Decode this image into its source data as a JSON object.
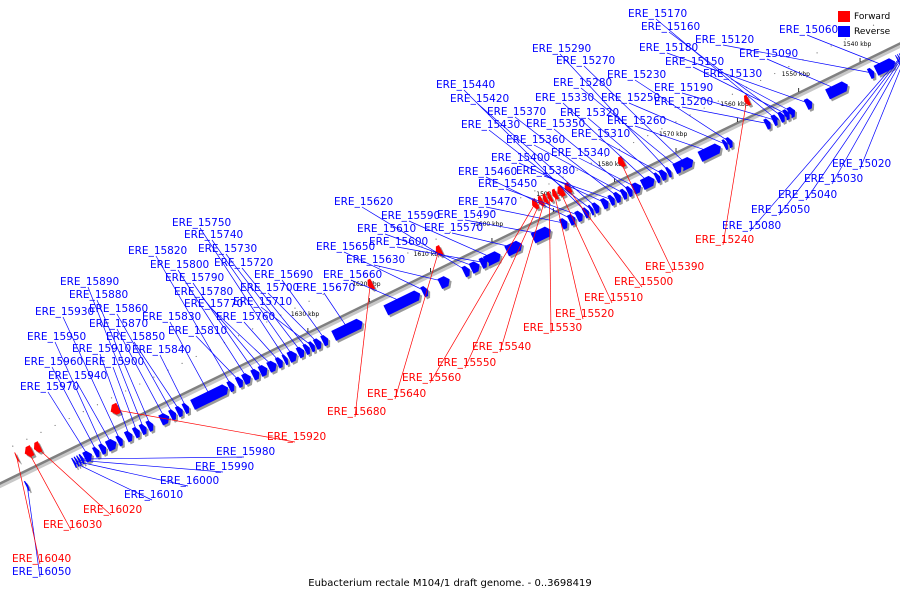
{
  "caption": "Eubacterium rectale M104/1 draft genome. - 0..3698419",
  "legend": {
    "items": [
      {
        "label": "Forward",
        "color": "#ff0000"
      },
      {
        "label": "Reverse",
        "color": "#0000ff"
      }
    ]
  },
  "colors": {
    "forward": "#ff0000",
    "reverse": "#0000ff",
    "axis": "#808080",
    "tick": "#000000"
  },
  "scale_labels": [
    {
      "text": "1540 kbp",
      "pos": 1540
    },
    {
      "text": "1550 kbp",
      "pos": 1550
    },
    {
      "text": "1560 kbp",
      "pos": 1560
    },
    {
      "text": "1570 kbp",
      "pos": 1570
    },
    {
      "text": "1580 kbp",
      "pos": 1580
    },
    {
      "text": "1590 kbp",
      "pos": 1590
    },
    {
      "text": "1600 kbp",
      "pos": 1600
    },
    {
      "text": "1610 kbp",
      "pos": 1610
    },
    {
      "text": "1620 kbp",
      "pos": 1620
    },
    {
      "text": "1630 kbp",
      "pos": 1630
    }
  ],
  "genes": [
    {
      "id": "ERE_15060",
      "strand": "reverse",
      "start": 1535.3,
      "end": 1538.4
    },
    {
      "id": "ERE_15090",
      "strand": "reverse",
      "start": 1543.0,
      "end": 1546.3
    },
    {
      "id": "ERE_15120",
      "strand": "reverse",
      "start": 1538.7,
      "end": 1539.5
    },
    {
      "id": "ERE_15130",
      "strand": "reverse",
      "start": 1551.6,
      "end": 1552.6
    },
    {
      "id": "ERE_15150",
      "strand": "reverse",
      "start": 1552.5,
      "end": 1553.3
    },
    {
      "id": "ERE_15160",
      "strand": "reverse",
      "start": 1553.3,
      "end": 1554.1
    },
    {
      "id": "ERE_15170",
      "strand": "reverse",
      "start": 1554.3,
      "end": 1555.0
    },
    {
      "id": "ERE_15180",
      "strand": "reverse",
      "start": 1548.8,
      "end": 1549.8
    },
    {
      "id": "ERE_15190",
      "strand": "reverse",
      "start": 1554.5,
      "end": 1555.2
    },
    {
      "id": "ERE_15200",
      "strand": "reverse",
      "start": 1555.6,
      "end": 1556.4
    },
    {
      "id": "ERE_15230",
      "strand": "reverse",
      "start": 1561.8,
      "end": 1562.6
    },
    {
      "id": "ERE_15250",
      "strand": "reverse",
      "start": 1562.6,
      "end": 1563.2
    },
    {
      "id": "ERE_15260",
      "strand": "reverse",
      "start": 1563.7,
      "end": 1567.1
    },
    {
      "id": "ERE_15270",
      "strand": "reverse",
      "start": 1568.2,
      "end": 1570.6
    },
    {
      "id": "ERE_15280",
      "strand": "reverse",
      "start": 1570.1,
      "end": 1571.2
    },
    {
      "id": "ERE_15290",
      "strand": "reverse",
      "start": 1571.8,
      "end": 1572.4
    },
    {
      "id": "ERE_15310",
      "strand": "reverse",
      "start": 1572.5,
      "end": 1573.5
    },
    {
      "id": "ERE_15320",
      "strand": "reverse",
      "start": 1573.6,
      "end": 1574.3
    },
    {
      "id": "ERE_15330",
      "strand": "reverse",
      "start": 1574.5,
      "end": 1576.5
    },
    {
      "id": "ERE_15340",
      "strand": "reverse",
      "start": 1576.7,
      "end": 1578.0
    },
    {
      "id": "ERE_15350",
      "strand": "reverse",
      "start": 1578.1,
      "end": 1578.9
    },
    {
      "id": "ERE_15360",
      "strand": "reverse",
      "start": 1579.0,
      "end": 1579.8
    },
    {
      "id": "ERE_15370",
      "strand": "reverse",
      "start": 1580.0,
      "end": 1580.9
    },
    {
      "id": "ERE_15380",
      "strand": "reverse",
      "start": 1581.0,
      "end": 1581.8
    },
    {
      "id": "ERE_15400",
      "strand": "reverse",
      "start": 1582.0,
      "end": 1583.0
    },
    {
      "id": "ERE_15420",
      "strand": "reverse",
      "start": 1583.5,
      "end": 1584.4
    },
    {
      "id": "ERE_15430",
      "strand": "reverse",
      "start": 1584.5,
      "end": 1585.0
    },
    {
      "id": "ERE_15440",
      "strand": "reverse",
      "start": 1585.2,
      "end": 1586.0
    },
    {
      "id": "ERE_15450",
      "strand": "reverse",
      "start": 1586.2,
      "end": 1587.2
    },
    {
      "id": "ERE_15460",
      "strand": "reverse",
      "start": 1587.4,
      "end": 1588.4
    },
    {
      "id": "ERE_15470",
      "strand": "reverse",
      "start": 1588.7,
      "end": 1589.7
    },
    {
      "id": "ERE_15490",
      "strand": "reverse",
      "start": 1591.4,
      "end": 1594.3
    },
    {
      "id": "ERE_15570",
      "strand": "reverse",
      "start": 1596.1,
      "end": 1598.6
    },
    {
      "id": "ERE_15590",
      "strand": "reverse",
      "start": 1599.6,
      "end": 1602.1
    },
    {
      "id": "ERE_15600",
      "strand": "reverse",
      "start": 1601.8,
      "end": 1602.8
    },
    {
      "id": "ERE_15610",
      "strand": "reverse",
      "start": 1603.0,
      "end": 1604.4
    },
    {
      "id": "ERE_15620",
      "strand": "reverse",
      "start": 1604.6,
      "end": 1605.6
    },
    {
      "id": "ERE_15630",
      "strand": "reverse",
      "start": 1607.9,
      "end": 1609.5
    },
    {
      "id": "ERE_15650",
      "strand": "reverse",
      "start": 1611.4,
      "end": 1612.3
    },
    {
      "id": "ERE_15660",
      "strand": "reverse",
      "start": 1612.7,
      "end": 1618.3
    },
    {
      "id": "ERE_15670",
      "strand": "reverse",
      "start": 1622.1,
      "end": 1626.8
    },
    {
      "id": "ERE_15690",
      "strand": "reverse",
      "start": 1627.7,
      "end": 1628.6
    },
    {
      "id": "ERE_15700",
      "strand": "reverse",
      "start": 1628.8,
      "end": 1629.8
    },
    {
      "id": "ERE_15710",
      "strand": "reverse",
      "start": 1629.9,
      "end": 1630.6
    },
    {
      "id": "ERE_15720",
      "strand": "reverse",
      "start": 1630.7,
      "end": 1631.5
    },
    {
      "id": "ERE_15730",
      "strand": "reverse",
      "start": 1631.6,
      "end": 1632.6
    },
    {
      "id": "ERE_15740",
      "strand": "reverse",
      "start": 1632.8,
      "end": 1634.1
    },
    {
      "id": "ERE_15750",
      "strand": "reverse",
      "start": 1634.3,
      "end": 1634.9
    },
    {
      "id": "ERE_15760",
      "strand": "reverse",
      "start": 1635.1,
      "end": 1636.0
    },
    {
      "id": "ERE_15770",
      "strand": "reverse",
      "start": 1636.1,
      "end": 1637.4
    },
    {
      "id": "ERE_15780",
      "strand": "reverse",
      "start": 1637.6,
      "end": 1638.8
    },
    {
      "id": "ERE_15790",
      "strand": "reverse",
      "start": 1638.9,
      "end": 1640.0
    },
    {
      "id": "ERE_15800",
      "strand": "reverse",
      "start": 1640.3,
      "end": 1641.5
    },
    {
      "id": "ERE_15810",
      "strand": "reverse",
      "start": 1641.6,
      "end": 1642.5
    },
    {
      "id": "ERE_15820",
      "strand": "reverse",
      "start": 1643.0,
      "end": 1643.9
    },
    {
      "id": "ERE_15830",
      "strand": "reverse",
      "start": 1644.0,
      "end": 1649.8
    },
    {
      "id": "ERE_15840",
      "strand": "reverse",
      "start": 1650.4,
      "end": 1651.2
    },
    {
      "id": "ERE_15850",
      "strand": "reverse",
      "start": 1651.4,
      "end": 1652.3
    },
    {
      "id": "ERE_15860",
      "strand": "reverse",
      "start": 1652.5,
      "end": 1653.4
    },
    {
      "id": "ERE_15870",
      "strand": "reverse",
      "start": 1653.6,
      "end": 1655.0
    },
    {
      "id": "ERE_15880",
      "strand": "reverse",
      "start": 1656.2,
      "end": 1657.1
    },
    {
      "id": "ERE_15890",
      "strand": "reverse",
      "start": 1657.3,
      "end": 1658.2
    },
    {
      "id": "ERE_15900",
      "strand": "reverse",
      "start": 1658.4,
      "end": 1659.3
    },
    {
      "id": "ERE_15910",
      "strand": "reverse",
      "start": 1659.6,
      "end": 1660.6
    },
    {
      "id": "ERE_15930",
      "strand": "reverse",
      "start": 1661.2,
      "end": 1662.0
    },
    {
      "id": "ERE_15940",
      "strand": "reverse",
      "start": 1662.2,
      "end": 1663.7
    },
    {
      "id": "ERE_15950",
      "strand": "reverse",
      "start": 1663.9,
      "end": 1664.8
    },
    {
      "id": "ERE_15960",
      "strand": "reverse",
      "start": 1665.0,
      "end": 1665.8
    },
    {
      "id": "ERE_15970",
      "strand": "reverse",
      "start": 1666.2,
      "end": 1667.4
    },
    {
      "id": "ERE_15980",
      "strand": "reverse",
      "start": 1667.6,
      "end": 1668.0
    },
    {
      "id": "ERE_15990",
      "strand": "reverse",
      "start": 1668.1,
      "end": 1668.4
    },
    {
      "id": "ERE_16000",
      "strand": "reverse",
      "start": 1668.5,
      "end": 1668.8
    },
    {
      "id": "ERE_16010",
      "strand": "reverse",
      "start": 1668.9,
      "end": 1669.2
    },
    {
      "id": "ERE_16050",
      "strand": "reverse",
      "start": 1676.6,
      "end": 1676.9
    },
    {
      "id": "ERE_15020",
      "strand": "reverse",
      "start": 1533.5,
      "end": 1533.7
    },
    {
      "id": "ERE_15030",
      "strand": "reverse",
      "start": 1533.8,
      "end": 1534.0
    },
    {
      "id": "ERE_15040",
      "strand": "reverse",
      "start": 1534.1,
      "end": 1534.3
    },
    {
      "id": "ERE_15050",
      "strand": "reverse",
      "start": 1534.4,
      "end": 1534.6
    },
    {
      "id": "ERE_15080",
      "strand": "reverse",
      "start": 1534.7,
      "end": 1534.9
    },
    {
      "id": "ERE_15240",
      "strand": "forward",
      "start": 1557.0,
      "end": 1557.7
    },
    {
      "id": "ERE_15390",
      "strand": "forward",
      "start": 1577.4,
      "end": 1578.3
    },
    {
      "id": "ERE_15500",
      "strand": "forward",
      "start": 1586.1,
      "end": 1587.0
    },
    {
      "id": "ERE_15510",
      "strand": "forward",
      "start": 1587.2,
      "end": 1588.2
    },
    {
      "id": "ERE_15520",
      "strand": "forward",
      "start": 1588.3,
      "end": 1589.0
    },
    {
      "id": "ERE_15530",
      "strand": "forward",
      "start": 1589.2,
      "end": 1589.8
    },
    {
      "id": "ERE_15540",
      "strand": "forward",
      "start": 1589.9,
      "end": 1590.5
    },
    {
      "id": "ERE_15550",
      "strand": "forward",
      "start": 1590.6,
      "end": 1591.3
    },
    {
      "id": "ERE_15560",
      "strand": "forward",
      "start": 1591.5,
      "end": 1592.3
    },
    {
      "id": "ERE_15640",
      "strand": "forward",
      "start": 1607.1,
      "end": 1608.0
    },
    {
      "id": "ERE_15680",
      "strand": "forward",
      "start": 1618.3,
      "end": 1619.1
    },
    {
      "id": "ERE_15920",
      "strand": "forward",
      "start": 1659.7,
      "end": 1661.0
    },
    {
      "id": "ERE_16020",
      "strand": "forward",
      "start": 1672.5,
      "end": 1673.5
    },
    {
      "id": "ERE_16030",
      "strand": "forward",
      "start": 1673.8,
      "end": 1675.0
    },
    {
      "id": "ERE_16040",
      "strand": "forward",
      "start": 1676.2,
      "end": 1676.4
    }
  ]
}
